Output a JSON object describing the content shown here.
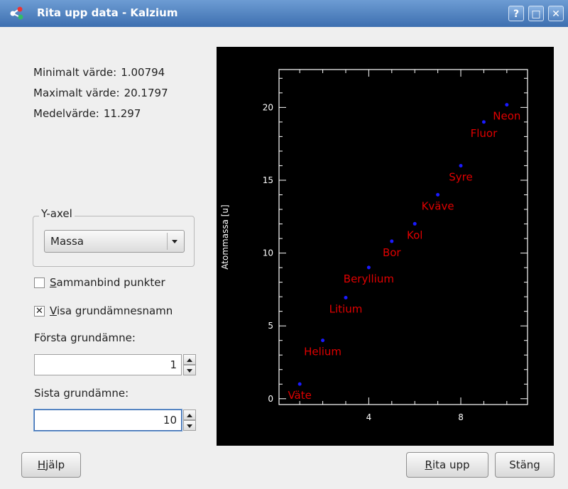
{
  "window": {
    "title": "Rita upp data - Kalzium",
    "help_btn": "?",
    "maximize_btn": "□",
    "close_btn": "✕"
  },
  "stats": {
    "min_label": "Minimalt värde:",
    "min_value": "1.00794",
    "max_label": "Maximalt värde:",
    "max_value": "20.1797",
    "mean_label": "Medelvärde:",
    "mean_value": "11.297"
  },
  "yaxis_group": {
    "title": "Y-axel",
    "selected": "Massa"
  },
  "options": {
    "connect_points": {
      "label_first": "S",
      "label_rest": "ammanbind punkter",
      "checked": false
    },
    "show_names": {
      "label_first": "V",
      "label_rest": "isa grundämnesnamn",
      "checked": true,
      "mark": "✕"
    }
  },
  "first_element": {
    "label": "Första grundämne:",
    "value": "1"
  },
  "last_element": {
    "label": "Sista grundämne:",
    "value": "10"
  },
  "buttons": {
    "help": {
      "first": "H",
      "rest": "jälp"
    },
    "plot": {
      "first": "R",
      "rest": "ita upp"
    },
    "close": "Stäng"
  },
  "colors": {
    "point": "#1a1aff",
    "label": "#e00000",
    "axis": "#ffffff",
    "background": "#000000"
  },
  "chart_data": {
    "type": "scatter",
    "ylabel": "Atommassa [u]",
    "xlabel": "",
    "xlim": [
      0.1,
      10.9
    ],
    "ylim": [
      -0.4,
      22.6
    ],
    "xticks": [
      4,
      8
    ],
    "yticks": [
      0,
      5,
      10,
      15,
      20
    ],
    "points": [
      {
        "x": 1,
        "y": 1.00794,
        "name": "Väte"
      },
      {
        "x": 2,
        "y": 4.0026,
        "name": "Helium"
      },
      {
        "x": 3,
        "y": 6.941,
        "name": "Litium"
      },
      {
        "x": 4,
        "y": 9.0122,
        "name": "Beryllium"
      },
      {
        "x": 5,
        "y": 10.811,
        "name": "Bor"
      },
      {
        "x": 6,
        "y": 12.0107,
        "name": "Kol"
      },
      {
        "x": 7,
        "y": 14.0067,
        "name": "Kväve"
      },
      {
        "x": 8,
        "y": 15.9994,
        "name": "Syre"
      },
      {
        "x": 9,
        "y": 18.9984,
        "name": "Fluor"
      },
      {
        "x": 10,
        "y": 20.1797,
        "name": "Neon"
      }
    ]
  }
}
